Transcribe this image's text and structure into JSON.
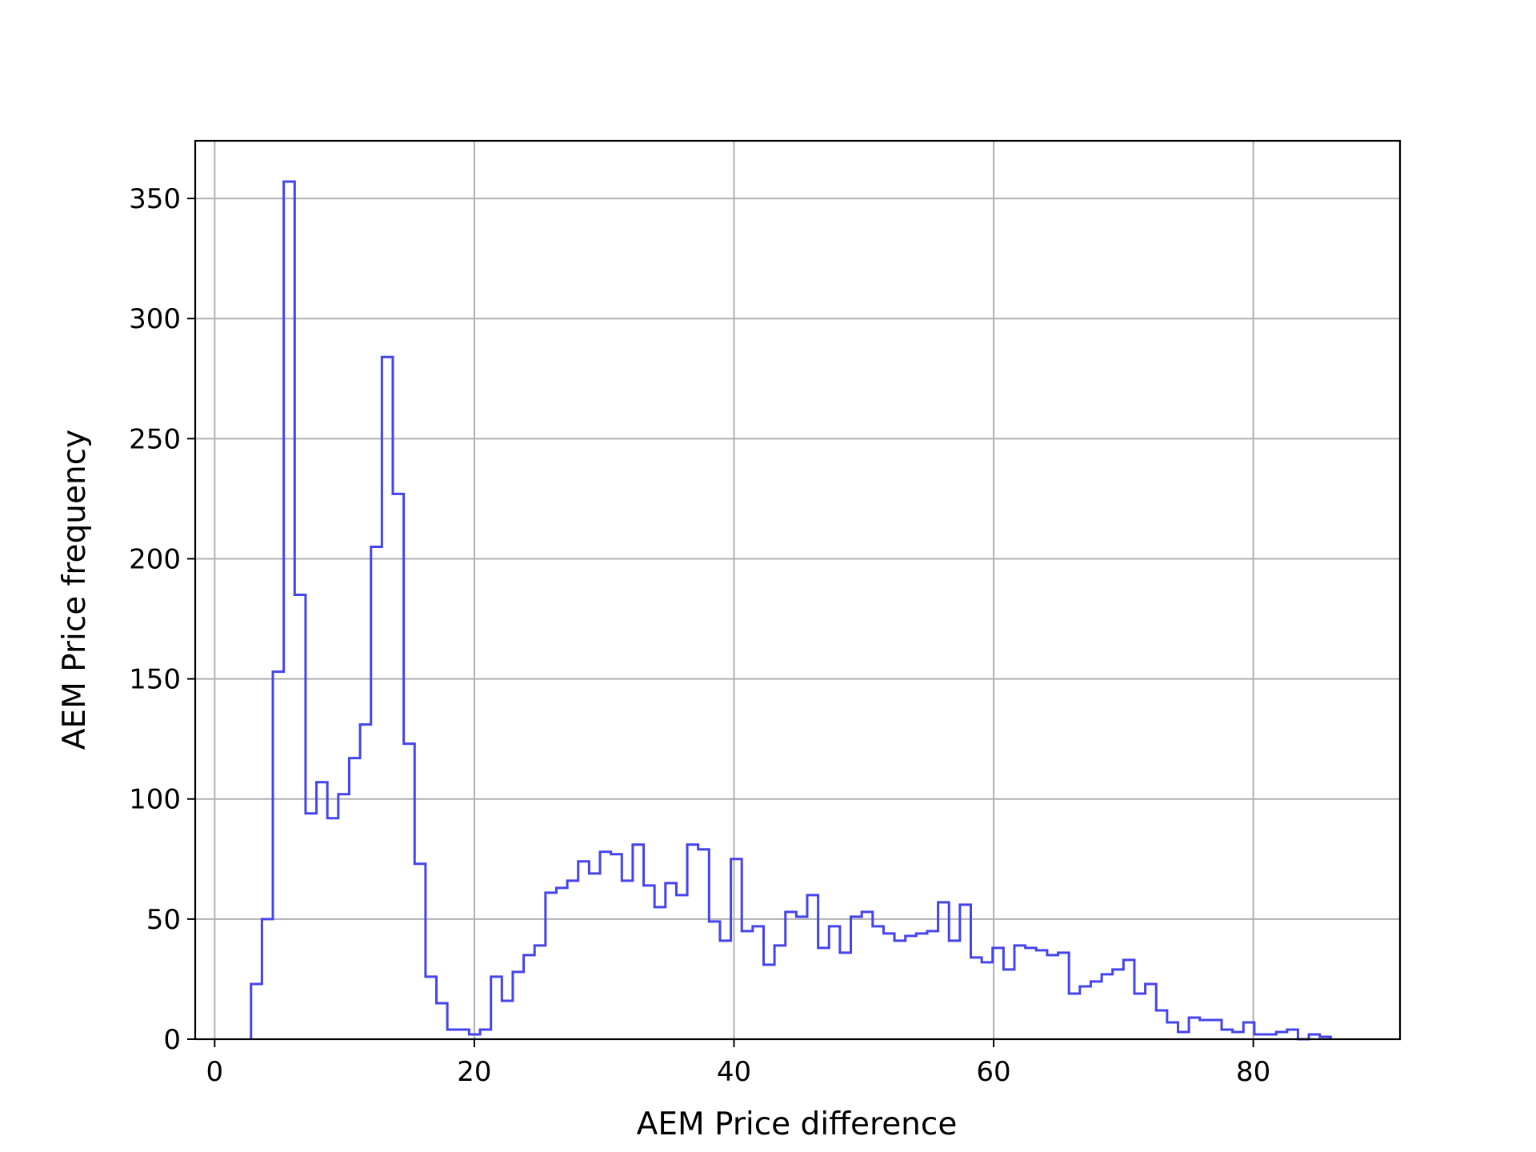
{
  "chart_data": {
    "type": "histogram",
    "histtype": "step",
    "title": "",
    "xlabel": "AEM Price difference",
    "ylabel": "AEM Price frequency",
    "xlim": [
      -1.5,
      91.3
    ],
    "ylim": [
      0,
      374
    ],
    "xticks": [
      0,
      20,
      40,
      60,
      80
    ],
    "yticks": [
      0,
      50,
      100,
      150,
      200,
      250,
      300,
      350
    ],
    "grid": true,
    "grid_color": "#b0b0b0",
    "line_color": "#4444ee",
    "bin_start": 2.8,
    "bin_width": 0.84,
    "values": [
      23,
      50,
      153,
      357,
      185,
      94,
      107,
      92,
      102,
      117,
      131,
      205,
      284,
      227,
      123,
      73,
      26,
      15,
      4,
      4,
      2,
      4,
      26,
      16,
      28,
      35,
      39,
      61,
      63,
      66,
      74,
      69,
      78,
      77,
      66,
      81,
      64,
      55,
      65,
      60,
      81,
      79,
      49,
      41,
      75,
      45,
      47,
      31,
      39,
      53,
      51,
      60,
      38,
      47,
      36,
      51,
      53,
      47,
      44,
      41,
      43,
      44,
      45,
      57,
      41,
      56,
      34,
      32,
      38,
      29,
      39,
      38,
      37,
      35,
      36,
      19,
      22,
      24,
      27,
      29,
      33,
      19,
      23,
      12,
      7,
      3,
      9,
      8,
      8,
      4,
      3,
      7,
      2,
      2,
      3,
      4,
      0,
      2,
      1
    ]
  }
}
